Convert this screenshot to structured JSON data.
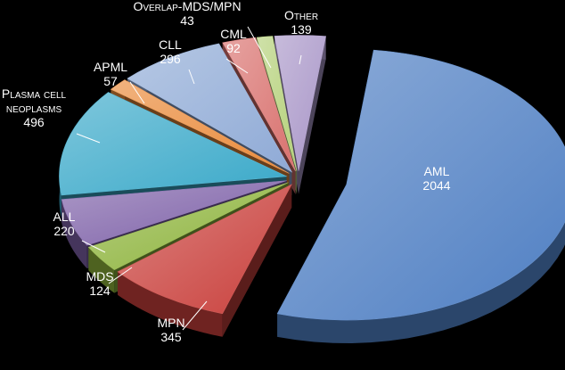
{
  "chart_data": {
    "type": "pie",
    "style": "3d-exploded",
    "background": "#000000",
    "slices": [
      {
        "label": "AML",
        "value": 2044,
        "color": "#4f7fc3",
        "label_color": "#ffffff"
      },
      {
        "label": "MPN",
        "value": 345,
        "color": "#c9403c",
        "label_color": "#ffffff"
      },
      {
        "label": "MDS",
        "value": 124,
        "color": "#8db33b",
        "label_color": "#ffffff"
      },
      {
        "label": "ALL",
        "value": 220,
        "color": "#7d60a8",
        "label_color": "#ffffff"
      },
      {
        "label": "Plasma cell neoplasms",
        "label_lines": [
          "Plasma cell",
          "neoplasms"
        ],
        "value": 496,
        "color": "#3aa9c9",
        "label_color": "#ffffff"
      },
      {
        "label": "APML",
        "value": 57,
        "color": "#e98a3a",
        "label_color": "#ffffff"
      },
      {
        "label": "CLL",
        "value": 296,
        "color": "#8faad6",
        "label_color": "#ffffff"
      },
      {
        "label": "CML",
        "value": 92,
        "color": "#d9716e",
        "label_color": "#ffffff"
      },
      {
        "label": "Overlap-MDS/MPN",
        "value": 43,
        "color": "#b5d17a",
        "label_color": "#ffffff"
      },
      {
        "label": "Other",
        "value": 139,
        "color": "#a996c8",
        "label_color": "#ffffff"
      }
    ]
  }
}
